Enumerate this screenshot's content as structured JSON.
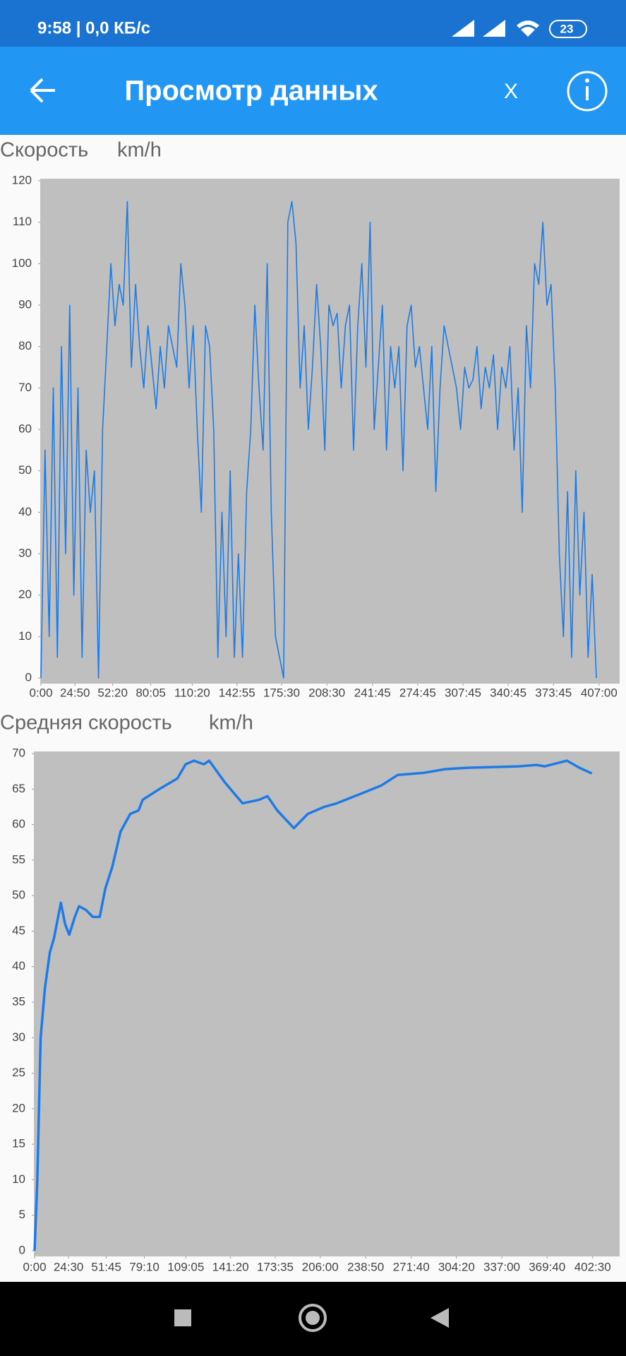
{
  "status_bar": {
    "time": "9:58 | 0,0 КБ/с",
    "battery": "23"
  },
  "app_bar": {
    "title": "Просмотр данных",
    "close": "X"
  },
  "chart_data": [
    {
      "type": "line",
      "title": "Скорость",
      "y_label": "km/h",
      "color": "#1e7be6",
      "x": [
        0,
        3,
        6,
        9,
        12,
        15,
        18,
        21,
        24,
        27,
        30,
        33,
        36,
        39,
        42,
        45,
        48,
        51,
        54,
        57,
        60,
        63,
        66,
        69,
        72,
        75,
        78,
        81,
        84,
        87,
        90,
        93,
        96,
        99,
        102,
        105,
        108,
        111,
        114,
        117,
        120,
        123,
        126,
        129,
        132,
        135,
        138,
        141,
        144,
        147,
        150,
        153,
        156,
        159,
        162,
        165,
        168,
        171,
        174,
        177,
        180,
        183,
        186,
        189,
        192,
        195,
        198,
        201,
        204,
        207,
        210,
        213,
        216,
        219,
        222,
        225,
        228,
        231,
        234,
        237,
        240,
        243,
        246,
        249,
        252,
        255,
        258,
        261,
        264,
        267,
        270,
        273,
        276,
        279,
        282,
        285,
        288,
        291,
        294,
        297,
        300,
        303,
        306,
        309,
        312,
        315,
        318,
        321,
        324,
        327,
        330,
        333,
        336,
        339,
        342,
        345,
        348,
        351,
        354,
        357,
        360,
        363,
        366,
        369,
        372,
        375,
        378,
        381,
        384,
        387,
        390,
        393,
        396,
        399,
        402,
        405
      ],
      "values": [
        0,
        55,
        10,
        70,
        5,
        80,
        30,
        90,
        20,
        70,
        5,
        55,
        40,
        50,
        0,
        60,
        80,
        100,
        85,
        95,
        90,
        115,
        75,
        95,
        80,
        70,
        85,
        75,
        65,
        80,
        70,
        85,
        80,
        75,
        100,
        90,
        70,
        85,
        60,
        40,
        85,
        80,
        60,
        5,
        40,
        10,
        50,
        5,
        30,
        5,
        45,
        60,
        90,
        70,
        55,
        100,
        40,
        10,
        5,
        0,
        110,
        115,
        105,
        70,
        85,
        60,
        75,
        95,
        80,
        55,
        90,
        85,
        88,
        70,
        85,
        90,
        55,
        85,
        100,
        75,
        110,
        60,
        75,
        90,
        55,
        80,
        70,
        80,
        50,
        85,
        90,
        75,
        80,
        70,
        60,
        80,
        45,
        70,
        85,
        80,
        75,
        70,
        60,
        75,
        70,
        72,
        80,
        65,
        75,
        70,
        78,
        60,
        75,
        70,
        80,
        55,
        70,
        40,
        85,
        70,
        100,
        95,
        110,
        90,
        95,
        70,
        30,
        10,
        45,
        5,
        50,
        20,
        40,
        5,
        25,
        0
      ],
      "xlim": [
        0,
        422
      ],
      "xticks": [
        {
          "value": 0,
          "label": "0:00"
        },
        {
          "value": 24.833,
          "label": "24:50"
        },
        {
          "value": 52.333,
          "label": "52:20"
        },
        {
          "value": 80.083,
          "label": "80:05"
        },
        {
          "value": 110.333,
          "label": "110:20"
        },
        {
          "value": 142.917,
          "label": "142:55"
        },
        {
          "value": 175.5,
          "label": "175:30"
        },
        {
          "value": 208.5,
          "label": "208:30"
        },
        {
          "value": 241.75,
          "label": "241:45"
        },
        {
          "value": 274.75,
          "label": "274:45"
        },
        {
          "value": 307.75,
          "label": "307:45"
        },
        {
          "value": 340.75,
          "label": "340:45"
        },
        {
          "value": 373.75,
          "label": "373:45"
        },
        {
          "value": 407,
          "label": "407:00"
        }
      ],
      "ylim": [
        0,
        120
      ],
      "yticks": [
        0,
        10,
        20,
        30,
        40,
        50,
        60,
        70,
        80,
        90,
        100,
        110,
        120
      ]
    },
    {
      "type": "line",
      "title": "Средняя скорость",
      "y_label": "km/h",
      "color": "#1e7be6",
      "x": [
        0,
        2,
        4.4,
        7.5,
        11,
        14,
        16,
        19,
        22,
        25,
        29,
        32,
        37,
        42,
        47,
        51,
        56,
        62,
        69,
        75,
        78,
        90,
        103,
        109,
        115,
        122,
        126,
        137,
        150,
        162,
        168,
        175,
        187,
        197,
        209,
        218,
        231,
        250,
        262,
        281,
        296,
        312,
        349,
        362,
        368,
        384,
        393,
        402
      ],
      "values": [
        0,
        10,
        30,
        37,
        42,
        44,
        46,
        49,
        46,
        44.5,
        47,
        48.5,
        48,
        47,
        47,
        51,
        54,
        59,
        61.5,
        62,
        63.5,
        65,
        66.5,
        68.5,
        69,
        68.5,
        69,
        66,
        63,
        63.5,
        64,
        62,
        59.5,
        61.5,
        62.5,
        63,
        64,
        65.5,
        67,
        67.3,
        67.8,
        68,
        68.2,
        68.4,
        68.2,
        69,
        68,
        67.2
      ],
      "xlim": [
        0,
        422
      ],
      "xticks": [
        {
          "value": 0,
          "label": "0:00"
        },
        {
          "value": 24.5,
          "label": "24:30"
        },
        {
          "value": 51.75,
          "label": "51:45"
        },
        {
          "value": 79.167,
          "label": "79:10"
        },
        {
          "value": 109.083,
          "label": "109:05"
        },
        {
          "value": 141.333,
          "label": "141:20"
        },
        {
          "value": 173.583,
          "label": "173:35"
        },
        {
          "value": 206,
          "label": "206:00"
        },
        {
          "value": 238.833,
          "label": "238:50"
        },
        {
          "value": 271.667,
          "label": "271:40"
        },
        {
          "value": 304.333,
          "label": "304:20"
        },
        {
          "value": 337,
          "label": "337:00"
        },
        {
          "value": 369.667,
          "label": "369:40"
        },
        {
          "value": 402.5,
          "label": "402:30"
        }
      ],
      "ylim": [
        0,
        70
      ],
      "yticks": [
        0,
        5,
        10,
        15,
        20,
        25,
        30,
        35,
        40,
        45,
        50,
        55,
        60,
        65,
        70
      ]
    }
  ]
}
